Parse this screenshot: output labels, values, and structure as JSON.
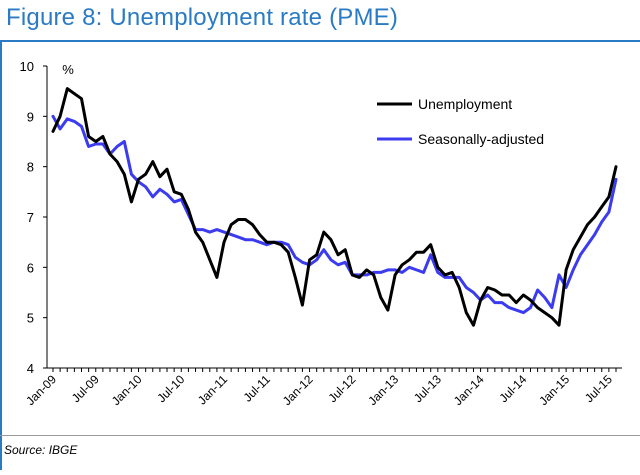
{
  "title": "Figure 8: Unemployment rate (PME)",
  "source": "Source: IBGE",
  "chart_data": {
    "type": "line",
    "unit_label": "%",
    "ylim": [
      4,
      10
    ],
    "yticks": [
      4,
      5,
      6,
      7,
      8,
      9,
      10
    ],
    "xtick_labels": [
      "Jan-09",
      "Jul-09",
      "Jan-10",
      "Jul-10",
      "Jan-11",
      "Jul-11",
      "Jan-12",
      "Jul-12",
      "Jan-13",
      "Jul-13",
      "Jan-14",
      "Jul-14",
      "Jan-15",
      "Jul-15"
    ],
    "legend_position": "top-right",
    "grid": false,
    "series": [
      {
        "name": "Unemployment",
        "color": "#000000",
        "values": [
          8.7,
          9.0,
          9.55,
          9.45,
          9.35,
          8.6,
          8.5,
          8.6,
          8.25,
          8.1,
          7.85,
          7.3,
          7.75,
          7.85,
          8.1,
          7.8,
          7.95,
          7.5,
          7.45,
          7.15,
          6.7,
          6.5,
          6.15,
          5.8,
          6.5,
          6.85,
          6.95,
          6.95,
          6.85,
          6.65,
          6.5,
          6.5,
          6.45,
          6.3,
          5.8,
          5.25,
          6.15,
          6.25,
          6.7,
          6.55,
          6.25,
          6.35,
          5.85,
          5.8,
          5.95,
          5.85,
          5.4,
          5.15,
          5.85,
          6.05,
          6.15,
          6.3,
          6.3,
          6.45,
          6.0,
          5.85,
          5.9,
          5.6,
          5.1,
          4.85,
          5.35,
          5.6,
          5.55,
          5.45,
          5.45,
          5.3,
          5.45,
          5.35,
          5.2,
          5.1,
          5.0,
          4.85,
          5.95,
          6.35,
          6.6,
          6.85,
          7.0,
          7.2,
          7.4,
          8.0
        ]
      },
      {
        "name": "Seasonally-adjusted",
        "color": "#3b3bf0",
        "values": [
          9.0,
          8.75,
          8.95,
          8.9,
          8.8,
          8.4,
          8.45,
          8.45,
          8.25,
          8.4,
          8.5,
          7.85,
          7.7,
          7.6,
          7.4,
          7.55,
          7.45,
          7.3,
          7.35,
          7.05,
          6.75,
          6.75,
          6.7,
          6.75,
          6.7,
          6.65,
          6.6,
          6.55,
          6.55,
          6.5,
          6.45,
          6.5,
          6.5,
          6.45,
          6.2,
          6.1,
          6.05,
          6.15,
          6.35,
          6.15,
          6.05,
          6.1,
          5.85,
          5.85,
          5.85,
          5.9,
          5.9,
          5.95,
          5.95,
          5.9,
          6.0,
          5.95,
          5.9,
          6.25,
          5.9,
          5.8,
          5.8,
          5.8,
          5.6,
          5.5,
          5.35,
          5.45,
          5.3,
          5.3,
          5.2,
          5.15,
          5.1,
          5.2,
          5.55,
          5.4,
          5.2,
          5.85,
          5.6,
          5.95,
          6.25,
          6.45,
          6.65,
          6.9,
          7.1,
          7.75
        ]
      }
    ]
  }
}
